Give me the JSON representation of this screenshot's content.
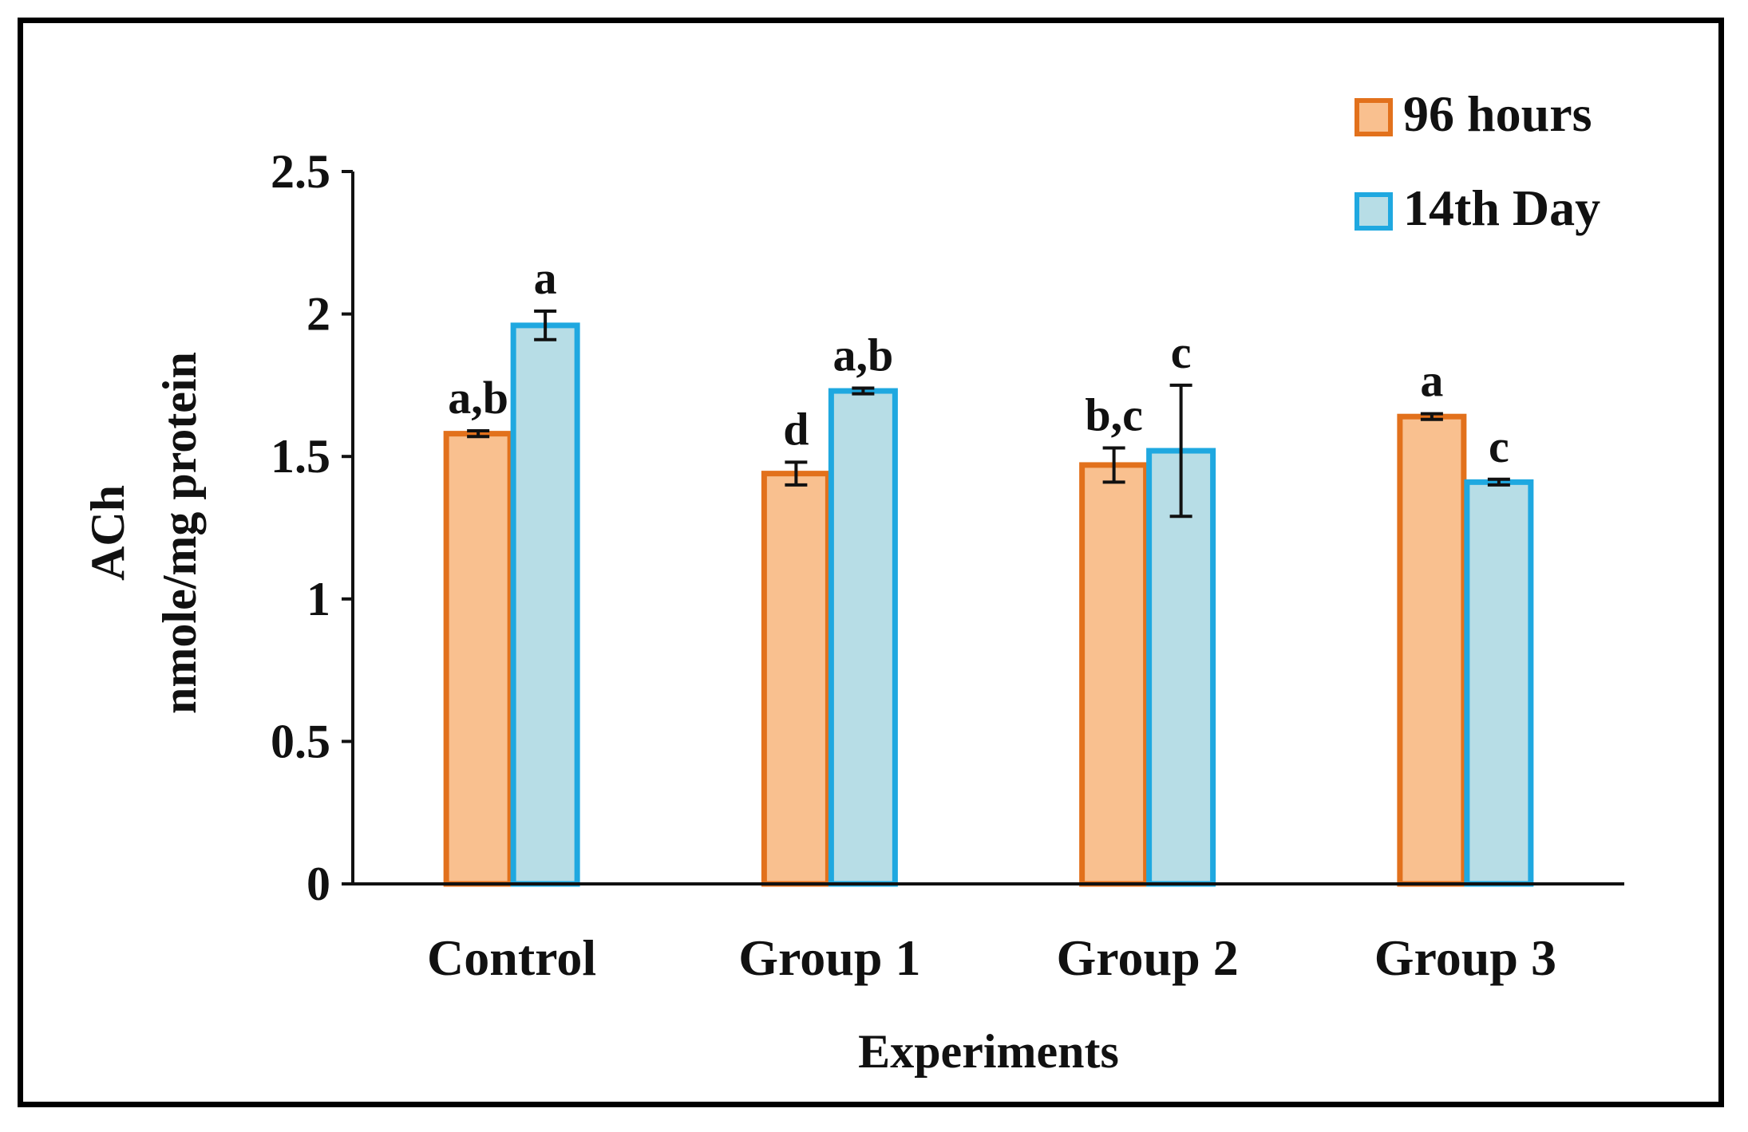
{
  "chart_data": {
    "type": "bar",
    "title": "",
    "xlabel": "Experiments",
    "ylabel": [
      "ACh",
      "nmole/mg protein"
    ],
    "ylim": [
      0,
      2.5
    ],
    "yticks": [
      "0",
      "0.5",
      "1",
      "1.5",
      "2",
      "2.5"
    ],
    "categories": [
      "Control",
      "Group 1",
      "Group 2",
      "Group 3"
    ],
    "legend_position": "top-right",
    "series": [
      {
        "name": "96 hours",
        "fill": "#f9c08f",
        "stroke": "#e2711c",
        "values": [
          1.58,
          1.44,
          1.47,
          1.64
        ],
        "errors": [
          0.01,
          0.04,
          0.06,
          0.01
        ],
        "labels": [
          "a,b",
          "d",
          "b,c",
          "a"
        ]
      },
      {
        "name": "14th Day",
        "fill": "#b7dde6",
        "stroke": "#1fa8e0",
        "values": [
          1.96,
          1.73,
          1.52,
          1.41
        ],
        "errors": [
          0.05,
          0.01,
          0.23,
          0.01
        ],
        "labels": [
          "a",
          "a,b",
          "c",
          "c"
        ]
      }
    ]
  }
}
